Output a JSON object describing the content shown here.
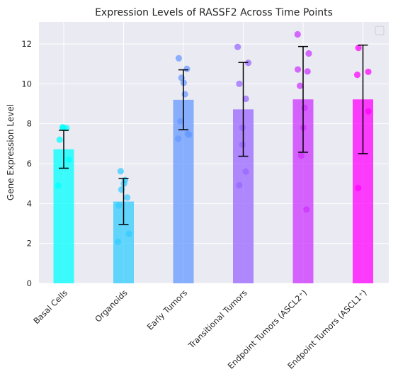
{
  "chart_data": {
    "type": "bar",
    "title": "Expression Levels of RASSF2 Across Time Points",
    "xlabel": "",
    "ylabel": "Gene Expression Level",
    "ylim": [
      0,
      13.1
    ],
    "yticks": [
      0,
      2,
      4,
      6,
      8,
      10,
      12
    ],
    "grid": true,
    "legend": "top-right (empty)",
    "categories": [
      "Basal Cells",
      "Organoids",
      "Early Tumors",
      "Transitional Tumors",
      "Endpoint Tumors (ASCL2⁺)",
      "Endpoint Tumors (ASCL1⁺)"
    ],
    "values": [
      6.72,
      4.1,
      9.2,
      8.72,
      9.22,
      9.22
    ],
    "error": [
      0.95,
      1.15,
      1.5,
      2.35,
      2.65,
      2.72
    ],
    "colors": [
      "#00ffff",
      "#33ccff",
      "#6699ff",
      "#9966ff",
      "#cc33ff",
      "#ff00ff"
    ],
    "points": [
      [
        7.8,
        7.82,
        7.78,
        7.2,
        6.2,
        4.9
      ],
      [
        5.62,
        5.18,
        5.0,
        4.7,
        4.3,
        3.9,
        2.48,
        2.08
      ],
      [
        11.28,
        10.75,
        10.3,
        10.05,
        9.48,
        8.12,
        7.5,
        7.25,
        7.45
      ],
      [
        11.85,
        11.05,
        10.0,
        9.25,
        7.8,
        6.95,
        5.6,
        4.92
      ],
      [
        12.48,
        11.52,
        10.72,
        10.62,
        9.9,
        8.8,
        7.8,
        6.4,
        3.7
      ],
      [
        11.8,
        10.6,
        10.45,
        8.62,
        4.78
      ]
    ]
  }
}
